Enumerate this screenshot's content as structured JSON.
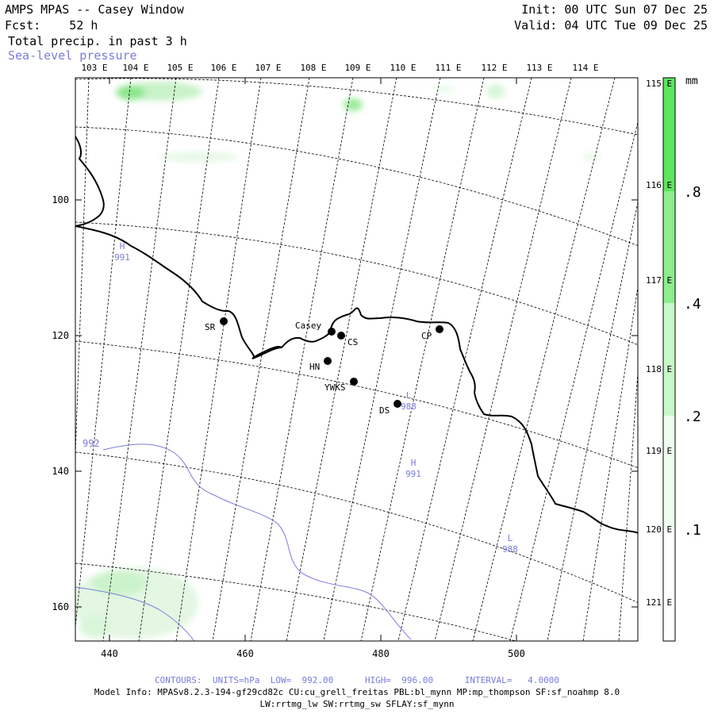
{
  "header": {
    "title": "AMPS MPAS -- Casey Window",
    "forecast": "Fcst:    52 h",
    "field": "Total precip. in past 3 h",
    "overlay": "Sea-level pressure",
    "init": "Init: 00 UTC Sun 07 Dec 25",
    "valid": "Valid: 04 UTC Tue 09 Dec 25"
  },
  "axes": {
    "x_ticks": [
      "440",
      "460",
      "480",
      "500"
    ],
    "y_ticks": [
      "100",
      "120",
      "140",
      "160"
    ]
  },
  "longitude_labels_top": [
    "103 E",
    "104 E",
    "105 E",
    "106 E",
    "107 E",
    "108 E",
    "109 E",
    "110 E",
    "111 E",
    "112 E",
    "113 E",
    "114 E"
  ],
  "longitude_labels_right": [
    "115 E",
    "116 E",
    "117 E",
    "118 E",
    "119 E",
    "120 E",
    "121 E"
  ],
  "stations": [
    {
      "code": "SR",
      "name_label": "SR"
    },
    {
      "code": "Casey",
      "name_label": "Casey"
    },
    {
      "code": "CS",
      "name_label": "CS"
    },
    {
      "code": "HN",
      "name_label": "HN"
    },
    {
      "code": "YWKS",
      "name_label": "YWKS"
    },
    {
      "code": "DS",
      "name_label": "DS"
    },
    {
      "code": "CP",
      "name_label": "CP"
    }
  ],
  "pressure_labels": [
    {
      "symbol": "H",
      "value": "991"
    },
    {
      "symbol": "L",
      "value": "988"
    },
    {
      "symbol": "H",
      "value": "991"
    },
    {
      "symbol": "L",
      "value": "988"
    }
  ],
  "contour_label": "992",
  "colorbar": {
    "unit": "mm",
    "labels": [
      ".8",
      ".4",
      ".2",
      ".1"
    ],
    "colors": [
      "#5ee65e",
      "#8cee8c",
      "#c8f7c8",
      "#eefcee",
      "#ffffff"
    ]
  },
  "footer": {
    "contours": "CONTOURS:  UNITS=hPa  LOW=  992.00      HIGH=  996.00      INTERVAL=   4.0000",
    "model_info": "Model Info: MPASv8.2.3-194-gf29cd82c CU:cu_grell_freitas PBL:bl_mynn MP:mp_thompson SF:sf_noahmp 8.0",
    "model_info2": "LW:rrtmg_lw SW:rrtmg_sw SFLAY:sf_mynn"
  },
  "colors": {
    "pressure": "#7b7bdc",
    "precip_light": "#dff7df",
    "precip_mid": "#9cec9c"
  }
}
